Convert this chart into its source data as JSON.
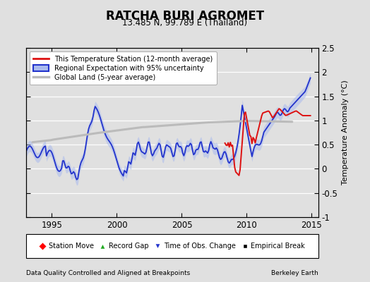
{
  "title": "RATCHA BURI AGROMET",
  "subtitle": "13.485 N, 99.789 E (Thailand)",
  "ylabel": "Temperature Anomaly (°C)",
  "xlim": [
    1993.0,
    2015.5
  ],
  "ylim": [
    -1.0,
    2.5
  ],
  "yticks": [
    -1.0,
    -0.5,
    0.0,
    0.5,
    1.0,
    1.5,
    2.0,
    2.5
  ],
  "xticks": [
    1995,
    2000,
    2005,
    2010,
    2015
  ],
  "background_color": "#e0e0e0",
  "plot_bg_color": "#e0e0e0",
  "grid_color": "#cccccc",
  "footer_left": "Data Quality Controlled and Aligned at Breakpoints",
  "footer_right": "Berkeley Earth",
  "legend_labels": [
    "This Temperature Station (12-month average)",
    "Regional Expectation with 95% uncertainty",
    "Global Land (5-year average)"
  ],
  "bottom_legend_labels": [
    "Station Move",
    "Record Gap",
    "Time of Obs. Change",
    "Empirical Break"
  ],
  "regional_color": "#2233cc",
  "regional_band_color": "#aabbee",
  "station_color": "#dd1111",
  "global_color": "#bbbbbb"
}
